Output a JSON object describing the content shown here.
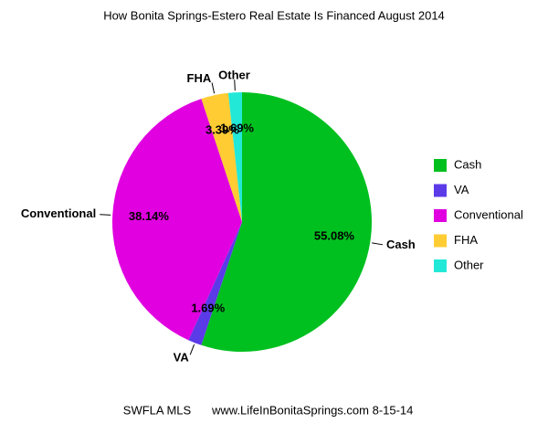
{
  "chart_data": {
    "type": "pie",
    "title": "How Bonita Springs-Estero Real Estate Is Financed August 2014",
    "categories": [
      "Cash",
      "VA",
      "Conventional",
      "FHA",
      "Other"
    ],
    "values": [
      55.08,
      1.69,
      38.14,
      3.39,
      1.69
    ],
    "value_labels": [
      "55.08%",
      "1.69%",
      "38.14%",
      "3.39%",
      "1.69%"
    ],
    "colors": [
      "#00c020",
      "#5b3ae8",
      "#e000e0",
      "#ffcc33",
      "#22e8d8"
    ],
    "legend": "right",
    "source": "SWFLA MLS",
    "footer": "www.LifeInBonitaSprings.com 8-15-14"
  }
}
